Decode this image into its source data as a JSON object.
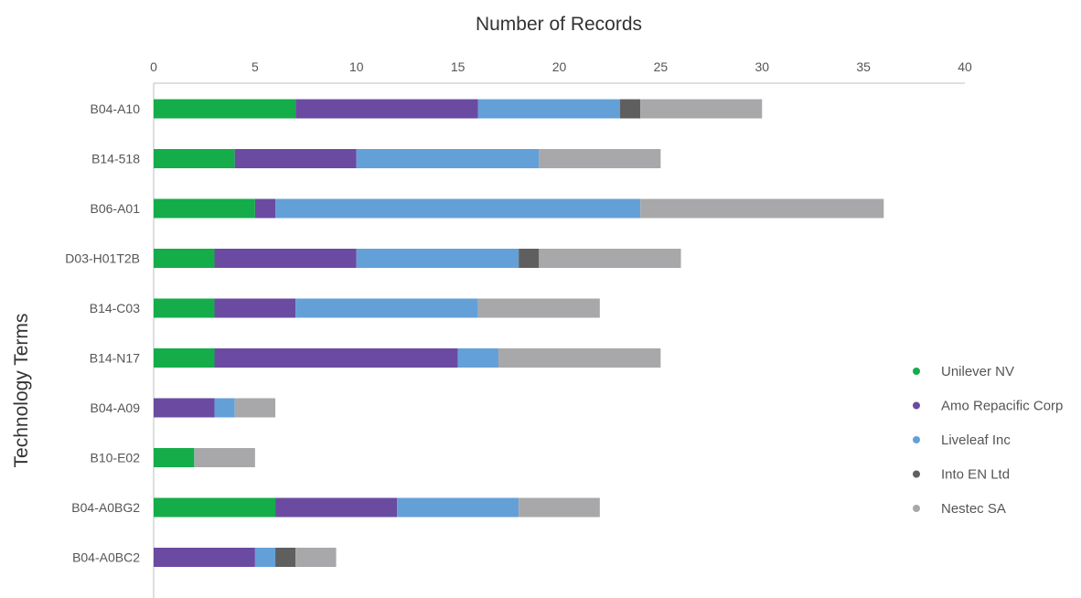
{
  "chart_data": {
    "type": "bar",
    "orientation": "horizontal",
    "stacked": true,
    "title": "",
    "xlabel": "Number of Records",
    "ylabel": "Technology Terms",
    "xlim": [
      0,
      40
    ],
    "xticks": [
      0,
      5,
      10,
      15,
      20,
      25,
      30,
      35,
      40
    ],
    "grid": false,
    "legend_position": "right",
    "categories": [
      "B04-A10",
      "B14-518",
      "B06-A01",
      "D03-H01T2B",
      "B14-C03",
      "B14-N17",
      "B04-A09",
      "B10-E02",
      "B04-A0BG2",
      "B04-A0BC2"
    ],
    "series": [
      {
        "name": "Unilever NV",
        "color": "#14ad4a",
        "values": [
          7,
          4,
          5,
          3,
          3,
          3,
          0,
          2,
          6,
          0
        ]
      },
      {
        "name": "Amo Repacific Corp",
        "color": "#6a4ba1",
        "values": [
          9,
          6,
          1,
          7,
          4,
          12,
          3,
          0,
          6,
          5
        ]
      },
      {
        "name": "Liveleaf Inc",
        "color": "#64a0d8",
        "values": [
          7,
          9,
          18,
          8,
          9,
          2,
          1,
          0,
          6,
          1
        ]
      },
      {
        "name": "Into EN Ltd",
        "color": "#5f5f5f",
        "values": [
          1,
          0,
          0,
          1,
          0,
          0,
          0,
          0,
          0,
          1
        ]
      },
      {
        "name": "Nestec SA",
        "color": "#a8a8aa",
        "values": [
          6,
          6,
          12,
          7,
          6,
          8,
          2,
          3,
          4,
          2
        ]
      }
    ]
  }
}
